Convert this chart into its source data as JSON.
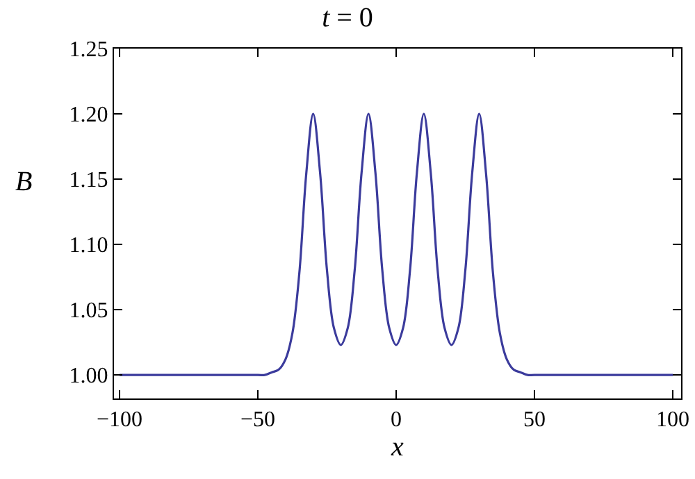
{
  "chart_data": {
    "type": "line",
    "title": "t = 0",
    "xlabel": "x",
    "ylabel": "B",
    "x": [
      -100,
      -50,
      -47.5,
      -45,
      -42.5,
      -40,
      -37.5,
      -35,
      -32.5,
      -30,
      -27.5,
      -25,
      -22.5,
      -20,
      -17.5,
      -15,
      -12.5,
      -10,
      -7.5,
      -5,
      -2.5,
      0,
      2.5,
      5,
      7.5,
      10,
      12.5,
      15,
      17.5,
      20,
      22.5,
      25,
      27.5,
      30,
      32.5,
      35,
      37.5,
      40,
      42.5,
      45,
      47.5,
      50,
      100
    ],
    "series": [
      {
        "color": "#3b3b9c",
        "values": [
          1.0,
          1.0,
          1.0,
          1.002,
          1.004,
          1.012,
          1.032,
          1.078,
          1.154,
          1.2,
          1.155,
          1.08,
          1.036,
          1.023,
          1.036,
          1.08,
          1.155,
          1.2,
          1.155,
          1.08,
          1.036,
          1.023,
          1.036,
          1.08,
          1.155,
          1.2,
          1.155,
          1.08,
          1.036,
          1.023,
          1.036,
          1.08,
          1.155,
          1.2,
          1.154,
          1.078,
          1.032,
          1.012,
          1.004,
          1.002,
          1.0,
          1.0,
          1.0
        ]
      }
    ],
    "xlim": [
      -102,
      103
    ],
    "ylim": [
      0.982,
      1.25
    ],
    "xticks": [
      {
        "value": -100,
        "label": "−100"
      },
      {
        "value": -50,
        "label": "−50"
      },
      0,
      50,
      100
    ],
    "yticks": [
      {
        "value": 1.0,
        "label": "1.00"
      },
      {
        "value": 1.05,
        "label": "1.05"
      },
      {
        "value": 1.1,
        "label": "1.10"
      },
      {
        "value": 1.15,
        "label": "1.15"
      },
      {
        "value": 1.2,
        "label": "1.20"
      },
      {
        "value": 1.25,
        "label": "1.25"
      }
    ],
    "grid": false,
    "marker": "none",
    "line_style": "solid"
  }
}
